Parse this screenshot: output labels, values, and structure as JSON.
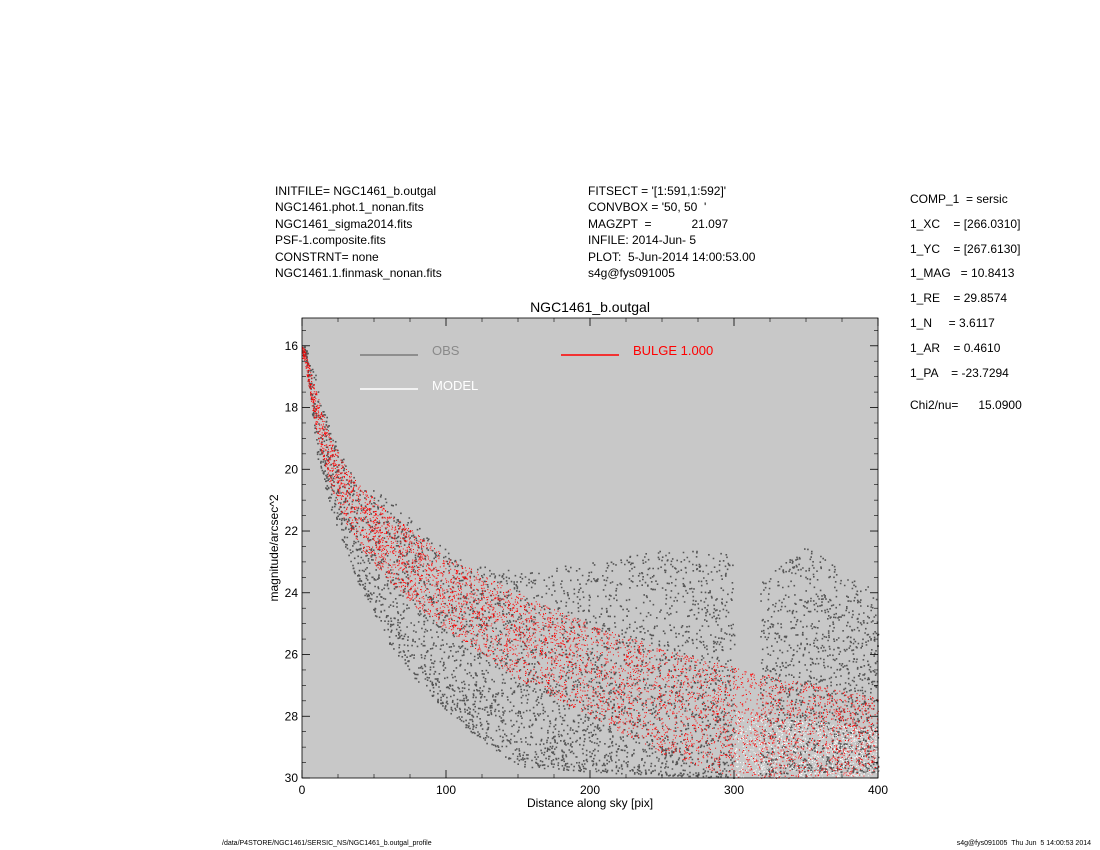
{
  "header_left": [
    "INITFILE= NGC1461_b.outgal",
    "NGC1461.phot.1_nonan.fits",
    "NGC1461_sigma2014.fits",
    "PSF-1.composite.fits",
    "CONSTRNT= none",
    "NGC1461.1.finmask_nonan.fits"
  ],
  "header_mid": [
    "FITSECT = '[1:591,1:592]'",
    "CONVBOX = '50, 50  '",
    "MAGZPT  =            21.097",
    "INFILE: 2014-Jun- 5",
    "PLOT:  5-Jun-2014 14:00:53.00",
    "s4g@fys091005"
  ],
  "header_right": [
    "COMP_1  = sersic",
    "1_XC    = [266.0310]",
    "1_YC    = [267.6130]",
    "1_MAG   = 10.8413",
    "1_RE    = 29.8574",
    "1_N     = 3.6117",
    "1_AR    = 0.4610",
    "1_PA    = -23.7294"
  ],
  "chi2": "Chi2/nu=      15.0900",
  "footer_left": "/data/P4STORE/NGC1461/SERSIC_NS/NGC1461_b.outgal_profile",
  "footer_right": "s4g@fys091005  Thu Jun  5 14:00:53 2014",
  "colors": {
    "plot_bg": "#c8c8c8",
    "obs": "#555555",
    "bulge": "#ff0000",
    "model": "#ffffff",
    "legend_obs_text": "#8a8a8a"
  },
  "chart_data": {
    "type": "scatter",
    "title": "NGC1461_b.outgal",
    "xlabel": "Distance along sky [pix]",
    "ylabel": "magnitude/arcsec^2",
    "xlim": [
      0,
      400
    ],
    "ylim": [
      30,
      15.1
    ],
    "y_inverted": true,
    "grid": false,
    "legend_placement": "top",
    "xticks": [
      0,
      100,
      200,
      300,
      400
    ],
    "yticks": [
      16,
      18,
      20,
      22,
      24,
      26,
      28,
      30
    ],
    "legend": [
      "OBS",
      "MODEL",
      "BULGE  1.000"
    ],
    "series": [
      {
        "name": "OBS",
        "description_points": "observed profile envelope (radius, faint edge, bright edge)",
        "envelope": [
          [
            2,
            16.3,
            16.0
          ],
          [
            10,
            19.5,
            17.0
          ],
          [
            20,
            21.3,
            18.8
          ],
          [
            30,
            22.6,
            19.8
          ],
          [
            40,
            23.8,
            20.5
          ],
          [
            50,
            24.7,
            20.6
          ],
          [
            60,
            25.6,
            20.9
          ],
          [
            80,
            26.9,
            21.8
          ],
          [
            100,
            27.8,
            22.6
          ],
          [
            120,
            28.6,
            23.1
          ],
          [
            150,
            29.6,
            23.3
          ],
          [
            200,
            29.8,
            23.0
          ],
          [
            250,
            29.9,
            22.6
          ],
          [
            300,
            30.0,
            22.6
          ],
          [
            320,
            29.9,
            23.5
          ],
          [
            350,
            29.8,
            22.5
          ],
          [
            400,
            29.8,
            24.0
          ]
        ]
      },
      {
        "name": "BULGE  1.000",
        "description_points": "sersic model band (radius, bright edge, faint edge)",
        "band": [
          [
            1,
            16.0,
            16.4
          ],
          [
            10,
            17.5,
            18.8
          ],
          [
            20,
            19.0,
            20.6
          ],
          [
            30,
            19.9,
            21.7
          ],
          [
            40,
            20.5,
            22.5
          ],
          [
            60,
            21.4,
            23.6
          ],
          [
            80,
            22.1,
            24.5
          ],
          [
            100,
            22.8,
            25.2
          ],
          [
            150,
            24.0,
            26.8
          ],
          [
            200,
            25.0,
            28.0
          ],
          [
            250,
            25.8,
            29.2
          ],
          [
            300,
            26.4,
            30.0
          ],
          [
            350,
            26.9,
            30.0
          ],
          [
            400,
            27.4,
            29.9
          ]
        ]
      }
    ]
  }
}
